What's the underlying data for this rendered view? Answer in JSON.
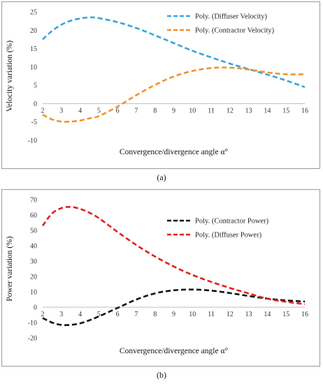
{
  "chart_data": [
    {
      "id": "a",
      "type": "line",
      "caption": "(a)",
      "xlabel": "Convergence/divergence angle α°",
      "ylabel": "Velocity variation (%)",
      "xlim": [
        2,
        16
      ],
      "ylim": [
        -10,
        25
      ],
      "yticks": [
        -10,
        -5,
        0,
        5,
        10,
        15,
        20,
        25
      ],
      "xticks": [
        2,
        3,
        4,
        5,
        6,
        7,
        8,
        9,
        10,
        11,
        12,
        13,
        14,
        15,
        16
      ],
      "grid": false,
      "legend": "top-right",
      "x": [
        2,
        2.5,
        3,
        3.5,
        4,
        4.5,
        5,
        6,
        7,
        8,
        9,
        10,
        11,
        12,
        13,
        14,
        15,
        16
      ],
      "series": [
        {
          "name": "Poly. (Diffuser Velocity)",
          "color": "#3aa5dc",
          "values": [
            17.5,
            19.8,
            21.5,
            22.6,
            23.2,
            23.5,
            23.3,
            22.2,
            20.6,
            18.6,
            16.5,
            14.4,
            12.6,
            10.9,
            9.4,
            7.9,
            6.3,
            4.5
          ]
        },
        {
          "name": "Poly. (Contractor Velocity)",
          "color": "#f0922e",
          "values": [
            -3.0,
            -4.3,
            -4.9,
            -4.9,
            -4.6,
            -4.0,
            -3.4,
            -0.8,
            2.3,
            5.1,
            7.4,
            8.9,
            9.7,
            9.8,
            9.3,
            8.5,
            8.0,
            8.0
          ]
        }
      ]
    },
    {
      "id": "b",
      "type": "line",
      "caption": "(b)",
      "xlabel": "Convergence/divergence angle α°",
      "ylabel": "Power variation (%)",
      "xlim": [
        2,
        16
      ],
      "ylim": [
        -20,
        70
      ],
      "yticks": [
        -20,
        -10,
        0,
        10,
        20,
        30,
        40,
        50,
        60,
        70
      ],
      "xticks": [
        2,
        3,
        4,
        5,
        6,
        7,
        8,
        9,
        10,
        11,
        12,
        13,
        14,
        15,
        16
      ],
      "grid": false,
      "legend": "top-right",
      "x": [
        2,
        2.5,
        3,
        3.5,
        4,
        4.5,
        5,
        6,
        7,
        8,
        9,
        10,
        11,
        12,
        13,
        14,
        15,
        16
      ],
      "series": [
        {
          "name": "Poly. (Contractor Power)",
          "color": "#111111",
          "values": [
            -7.0,
            -10.0,
            -11.5,
            -11.5,
            -10.5,
            -8.5,
            -6.0,
            -0.5,
            5.0,
            9.0,
            11.0,
            11.5,
            10.8,
            9.2,
            7.3,
            5.6,
            4.4,
            3.7
          ]
        },
        {
          "name": "Poly. (Diffuser Power)",
          "color": "#e02020",
          "values": [
            53.0,
            61.0,
            64.5,
            65.3,
            64.0,
            61.5,
            58.0,
            49.0,
            40.5,
            33.0,
            26.5,
            21.0,
            16.5,
            12.5,
            9.0,
            5.5,
            3.5,
            2.0
          ]
        }
      ]
    }
  ]
}
